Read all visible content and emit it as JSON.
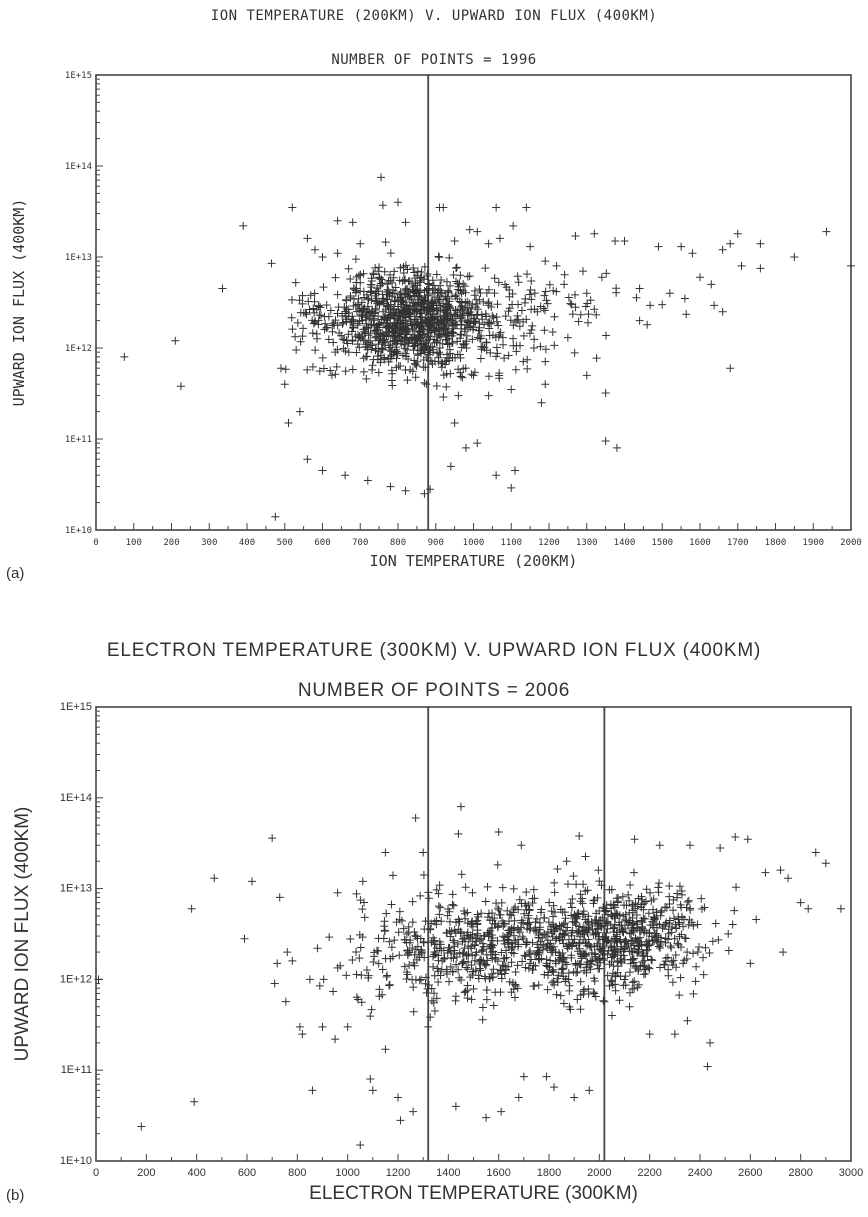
{
  "panels": [
    {
      "id": "a",
      "label": "(a)",
      "title": "ION TEMPERATURE (200KM) V. UPWARD ION FLUX (400KM)",
      "subtitle": "NUMBER OF POINTS = 1996",
      "xlabel": "ION TEMPERATURE (200KM)",
      "ylabel": "UPWARD ION FLUX (400KM)"
    },
    {
      "id": "b",
      "label": "(b)",
      "title": "ELECTRON TEMPERATURE (300KM) V. UPWARD ION FLUX (400KM)",
      "subtitle": "NUMBER OF POINTS = 2006",
      "xlabel": "ELECTRON TEMPERATURE (300KM)",
      "ylabel": "UPWARD ION FLUX (400KM)"
    }
  ],
  "chart_data": [
    {
      "type": "scatter",
      "title": "ION TEMPERATURE (200KM) V. UPWARD ION FLUX (400KM)",
      "subtitle": "NUMBER OF POINTS = 1996",
      "xlabel": "ION TEMPERATURE (200KM)",
      "ylabel": "UPWARD ION FLUX (400KM)",
      "xlim": [
        0,
        2000
      ],
      "ylim": [
        10000000000.0,
        1000000000000000.0
      ],
      "y_scale": "log",
      "marker": "+",
      "grid": false,
      "xticks": [
        "0",
        "100",
        "200",
        "300",
        "400",
        "500",
        "600",
        "700",
        "800",
        "900",
        "1000",
        "1100",
        "1200",
        "1300",
        "1400",
        "1500",
        "1600",
        "1700",
        "1800",
        "1900",
        "2000"
      ],
      "yticks": [
        "1E+10",
        "1E+11",
        "1E+12",
        "1E+13",
        "1E+14",
        "1E+15"
      ],
      "reference_lines_x": [
        880
      ],
      "points": [
        [
          75,
          800000000000.0
        ],
        [
          210,
          1200000000000.0
        ],
        [
          225,
          380000000000.0
        ],
        [
          335,
          4500000000000.0
        ],
        [
          390,
          22000000000000.0
        ],
        [
          465,
          8500000000000.0
        ],
        [
          475,
          14000000000.0
        ],
        [
          520,
          35000000000000.0
        ],
        [
          560,
          16000000000000.0
        ],
        [
          640,
          25000000000000.0
        ],
        [
          680,
          24000000000000.0
        ],
        [
          755,
          75000000000000.0
        ],
        [
          760,
          37000000000000.0
        ],
        [
          800,
          40000000000000.0
        ],
        [
          820,
          24000000000000.0
        ],
        [
          860,
          6000000000000.0
        ],
        [
          870,
          25000000000.0
        ],
        [
          885,
          28000000000.0
        ],
        [
          910,
          35000000000000.0
        ],
        [
          920,
          35000000000000.0
        ],
        [
          1060,
          35000000000000.0
        ],
        [
          1140,
          35000000000000.0
        ],
        [
          1010,
          19000000000000.0
        ],
        [
          1105,
          22000000000000.0
        ],
        [
          1270,
          17000000000000.0
        ],
        [
          1320,
          18000000000000.0
        ],
        [
          1375,
          15000000000000.0
        ],
        [
          1400,
          15000000000000.0
        ],
        [
          1490,
          13000000000000.0
        ],
        [
          1550,
          13000000000000.0
        ],
        [
          1580,
          11000000000000.0
        ],
        [
          1660,
          12000000000000.0
        ],
        [
          1680,
          14000000000000.0
        ],
        [
          1700,
          18000000000000.0
        ],
        [
          1760,
          14000000000000.0
        ],
        [
          1850,
          10000000000000.0
        ],
        [
          1935,
          19000000000000.0
        ],
        [
          2000,
          8000000000000.0
        ],
        [
          1660,
          2500000000000.0
        ],
        [
          1680,
          600000000000.0
        ],
        [
          1350,
          95000000000.0
        ],
        [
          1380,
          80000000000.0
        ],
        [
          1110,
          45000000000.0
        ],
        [
          1100,
          29000000000.0
        ],
        [
          1060,
          40000000000.0
        ],
        [
          940,
          50000000000.0
        ],
        [
          1500,
          3000000000000.0
        ],
        [
          1440,
          4500000000000.0
        ],
        [
          1600,
          6000000000000.0
        ],
        [
          1710,
          8000000000000.0
        ],
        [
          1760,
          7500000000000.0
        ],
        [
          500,
          400000000000.0
        ],
        [
          510,
          150000000000.0
        ],
        [
          490,
          600000000000.0
        ],
        [
          540,
          200000000000.0
        ],
        [
          560,
          60000000000.0
        ],
        [
          600,
          45000000000.0
        ],
        [
          660,
          40000000000.0
        ],
        [
          720,
          35000000000.0
        ],
        [
          780,
          30000000000.0
        ],
        [
          820,
          27000000000.0
        ],
        [
          980,
          80000000000.0
        ],
        [
          1010,
          90000000000.0
        ],
        [
          1210,
          1500000000000.0
        ],
        [
          1250,
          1300000000000.0
        ],
        [
          1300,
          500000000000.0
        ],
        [
          1350,
          320000000000.0
        ],
        [
          1440,
          2000000000000.0
        ],
        [
          1460,
          1800000000000.0
        ],
        [
          1520,
          4000000000000.0
        ],
        [
          1560,
          3500000000000.0
        ],
        [
          1630,
          5000000000000.0
        ],
        [
          1290,
          7000000000000.0
        ],
        [
          1240,
          5000000000000.0
        ],
        [
          1190,
          400000000000.0
        ],
        [
          1160,
          1000000000000.0
        ],
        [
          1180,
          250000000000.0
        ],
        [
          1000,
          500000000000.0
        ],
        [
          1040,
          300000000000.0
        ],
        [
          950,
          150000000000.0
        ],
        [
          960,
          300000000000.0
        ],
        [
          1100,
          350000000000.0
        ],
        [
          600,
          10000000000000.0
        ],
        [
          640,
          11000000000000.0
        ],
        [
          580,
          12000000000000.0
        ],
        [
          700,
          14000000000000.0
        ],
        [
          950,
          15000000000000.0
        ],
        [
          990,
          20000000000000.0
        ],
        [
          1040,
          14000000000000.0
        ],
        [
          1070,
          16000000000000.0
        ],
        [
          1150,
          13000000000000.0
        ],
        [
          1190,
          9000000000000.0
        ],
        [
          1220,
          8000000000000.0
        ],
        [
          1260,
          3000000000000.0
        ],
        [
          1300,
          4000000000000.0
        ],
        [
          1340,
          6000000000000.0
        ]
      ]
    },
    {
      "type": "scatter",
      "title": "ELECTRON TEMPERATURE (300KM) V. UPWARD ION FLUX (400KM)",
      "subtitle": "NUMBER OF POINTS = 2006",
      "xlabel": "ELECTRON TEMPERATURE (300KM)",
      "ylabel": "UPWARD ION FLUX (400KM)",
      "xlim": [
        0,
        3000
      ],
      "ylim": [
        10000000000.0,
        1000000000000000.0
      ],
      "y_scale": "log",
      "marker": "+",
      "grid": false,
      "xticks": [
        "0",
        "200",
        "400",
        "600",
        "800",
        "1000",
        "1200",
        "1400",
        "1600",
        "1800",
        "2000",
        "2200",
        "2400",
        "2600",
        "2800",
        "3000"
      ],
      "yticks": [
        "1E+10",
        "1E+11",
        "1E+12",
        "1E+13",
        "1E+14",
        "1E+15"
      ],
      "reference_lines_x": [
        1320,
        2020
      ],
      "points": [
        [
          10,
          1000000000000.0
        ],
        [
          180,
          24000000000.0
        ],
        [
          380,
          6000000000000.0
        ],
        [
          390,
          45000000000.0
        ],
        [
          470,
          13000000000000.0
        ],
        [
          590,
          2800000000000.0
        ],
        [
          620,
          12000000000000.0
        ],
        [
          700,
          36000000000000.0
        ],
        [
          710,
          900000000000.0
        ],
        [
          720,
          1500000000000.0
        ],
        [
          730,
          8000000000000.0
        ],
        [
          850,
          1000000000000.0
        ],
        [
          860,
          60000000000.0
        ],
        [
          810,
          300000000000.0
        ],
        [
          820,
          250000000000.0
        ],
        [
          1050,
          15000000000.0
        ],
        [
          1090,
          80000000000.0
        ],
        [
          1150,
          25000000000000.0
        ],
        [
          1210,
          28000000000.0
        ],
        [
          1270,
          60000000000000.0
        ],
        [
          1300,
          25000000000000.0
        ],
        [
          1450,
          80000000000000.0
        ],
        [
          1440,
          40000000000000.0
        ],
        [
          1600,
          42000000000000.0
        ],
        [
          1690,
          30000000000000.0
        ],
        [
          1870,
          20000000000000.0
        ],
        [
          1920,
          38000000000000.0
        ],
        [
          2140,
          35000000000000.0
        ],
        [
          2240,
          30000000000000.0
        ],
        [
          2360,
          30000000000000.0
        ],
        [
          2480,
          28000000000000.0
        ],
        [
          2540,
          37000000000000.0
        ],
        [
          2590,
          35000000000000.0
        ],
        [
          2660,
          15000000000000.0
        ],
        [
          2720,
          16000000000000.0
        ],
        [
          2750,
          13000000000000.0
        ],
        [
          2800,
          7000000000000.0
        ],
        [
          2830,
          6000000000000.0
        ],
        [
          2860,
          25000000000000.0
        ],
        [
          2900,
          19000000000000.0
        ],
        [
          2960,
          6000000000000.0
        ],
        [
          2440,
          200000000000.0
        ],
        [
          2430,
          110000000000.0
        ],
        [
          2730,
          2000000000000.0
        ],
        [
          2600,
          1500000000000.0
        ],
        [
          1430,
          40000000000.0
        ],
        [
          1550,
          30000000000.0
        ],
        [
          1610,
          35000000000.0
        ],
        [
          1680,
          50000000000.0
        ],
        [
          1820,
          65000000000.0
        ],
        [
          1900,
          50000000000.0
        ],
        [
          1960,
          60000000000.0
        ],
        [
          1790,
          85000000000.0
        ],
        [
          1700,
          85000000000.0
        ],
        [
          1320,
          300000000000.0
        ],
        [
          1260,
          35000000000.0
        ],
        [
          1200,
          50000000000.0
        ],
        [
          1100,
          60000000000.0
        ],
        [
          1150,
          170000000000.0
        ],
        [
          1000,
          300000000000.0
        ],
        [
          950,
          220000000000.0
        ],
        [
          900,
          300000000000.0
        ],
        [
          960,
          9000000000000.0
        ],
        [
          1060,
          12000000000000.0
        ],
        [
          1180,
          14000000000000.0
        ],
        [
          760,
          2000000000000.0
        ],
        [
          780,
          1600000000000.0
        ],
        [
          880,
          2200000000000.0
        ],
        [
          2300,
          250000000000.0
        ],
        [
          2350,
          350000000000.0
        ],
        [
          2200,
          250000000000.0
        ],
        [
          2120,
          500000000000.0
        ],
        [
          2050,
          400000000000.0
        ],
        [
          1980,
          700000000000.0
        ]
      ]
    }
  ]
}
